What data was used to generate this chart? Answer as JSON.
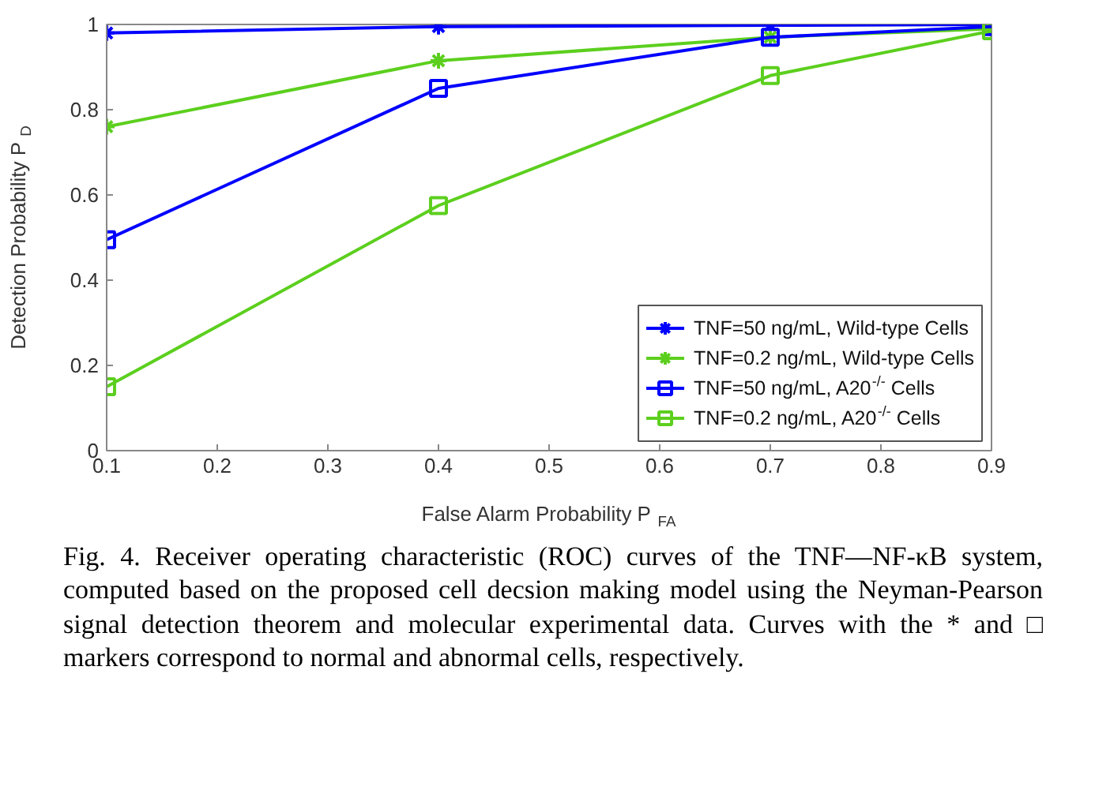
{
  "chart_data": {
    "type": "line",
    "xlabel": "False Alarm Probability  P$_{FA}$",
    "ylabel": "Detection Probability  P$_{D}$",
    "x": [
      0.1,
      0.4,
      0.7,
      0.9
    ],
    "series": [
      {
        "name": "TNF=50 ng/mL, Wild-type Cells",
        "color": "#0000ff",
        "marker": "cross",
        "values": [
          0.98,
          0.995,
          0.998,
          1.0
        ]
      },
      {
        "name": "TNF=0.2 ng/mL, Wild-type Cells",
        "color": "#5ccf1e",
        "marker": "cross",
        "values": [
          0.76,
          0.915,
          0.97,
          0.99
        ]
      },
      {
        "name": "TNF=50 ng/mL, A20$^{-/-}$ Cells",
        "color": "#0000ff",
        "marker": "square",
        "values": [
          0.495,
          0.85,
          0.97,
          0.995
        ]
      },
      {
        "name": "TNF=0.2 ng/mL, A20$^{-/-}$ Cells",
        "color": "#5ccf1e",
        "marker": "square",
        "values": [
          0.15,
          0.575,
          0.88,
          0.985
        ]
      }
    ],
    "xlim": [
      0.1,
      0.9
    ],
    "xticks": [
      0.1,
      0.2,
      0.3,
      0.4,
      0.5,
      0.6,
      0.7,
      0.8,
      0.9
    ],
    "ylim": [
      0,
      1
    ],
    "yticks": [
      0,
      0.2,
      0.4,
      0.6,
      0.8,
      1
    ],
    "grid": false,
    "legend": "bottom right",
    "line_style": "solid",
    "annotations": [
      "Fig. 4. Receiver operating characteristic (ROC) curves of the TNF—NF-κB system, computed based on the proposed cell decsion making model using the Neyman-Pearson signal detection theorem and molecular experimental data. Curves with the * and □ markers correspond to normal and abnormal cells, respectively."
    ]
  }
}
